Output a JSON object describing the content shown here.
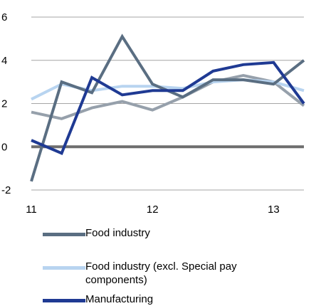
{
  "chart_data": {
    "type": "line",
    "x": [
      "11Q1",
      "11Q2",
      "11Q3",
      "11Q4",
      "12Q1",
      "12Q2",
      "12Q3",
      "12Q4",
      "13Q1",
      "13Q2"
    ],
    "x_tick_labels": [
      "11",
      "12",
      "13"
    ],
    "y_tick_labels": [
      "-2",
      "0",
      "2",
      "4",
      "6"
    ],
    "ylim": [
      -2,
      6
    ],
    "grid": "horizontal",
    "legend_position": "bottom",
    "series": [
      {
        "name": "Food industry",
        "color": "#5a6e82",
        "values": [
          -1.6,
          3.0,
          2.5,
          5.1,
          2.9,
          2.3,
          3.1,
          3.1,
          2.9,
          4.0
        ]
      },
      {
        "name": "Food industry (excl. Special pay components)",
        "color": "#b8d4f0",
        "values": [
          2.2,
          2.9,
          2.6,
          2.8,
          2.8,
          2.7,
          3.0,
          3.1,
          3.0,
          2.6
        ]
      },
      {
        "name": "Manufacturing",
        "color": "#1f3a93",
        "values": [
          0.3,
          -0.3,
          3.2,
          2.4,
          2.6,
          2.6,
          3.5,
          3.8,
          3.9,
          2.0
        ]
      },
      {
        "name": "",
        "color": "#96a0ab",
        "values": [
          1.6,
          1.3,
          1.8,
          2.1,
          1.7,
          2.3,
          3.0,
          3.3,
          3.0,
          1.9
        ]
      }
    ]
  }
}
